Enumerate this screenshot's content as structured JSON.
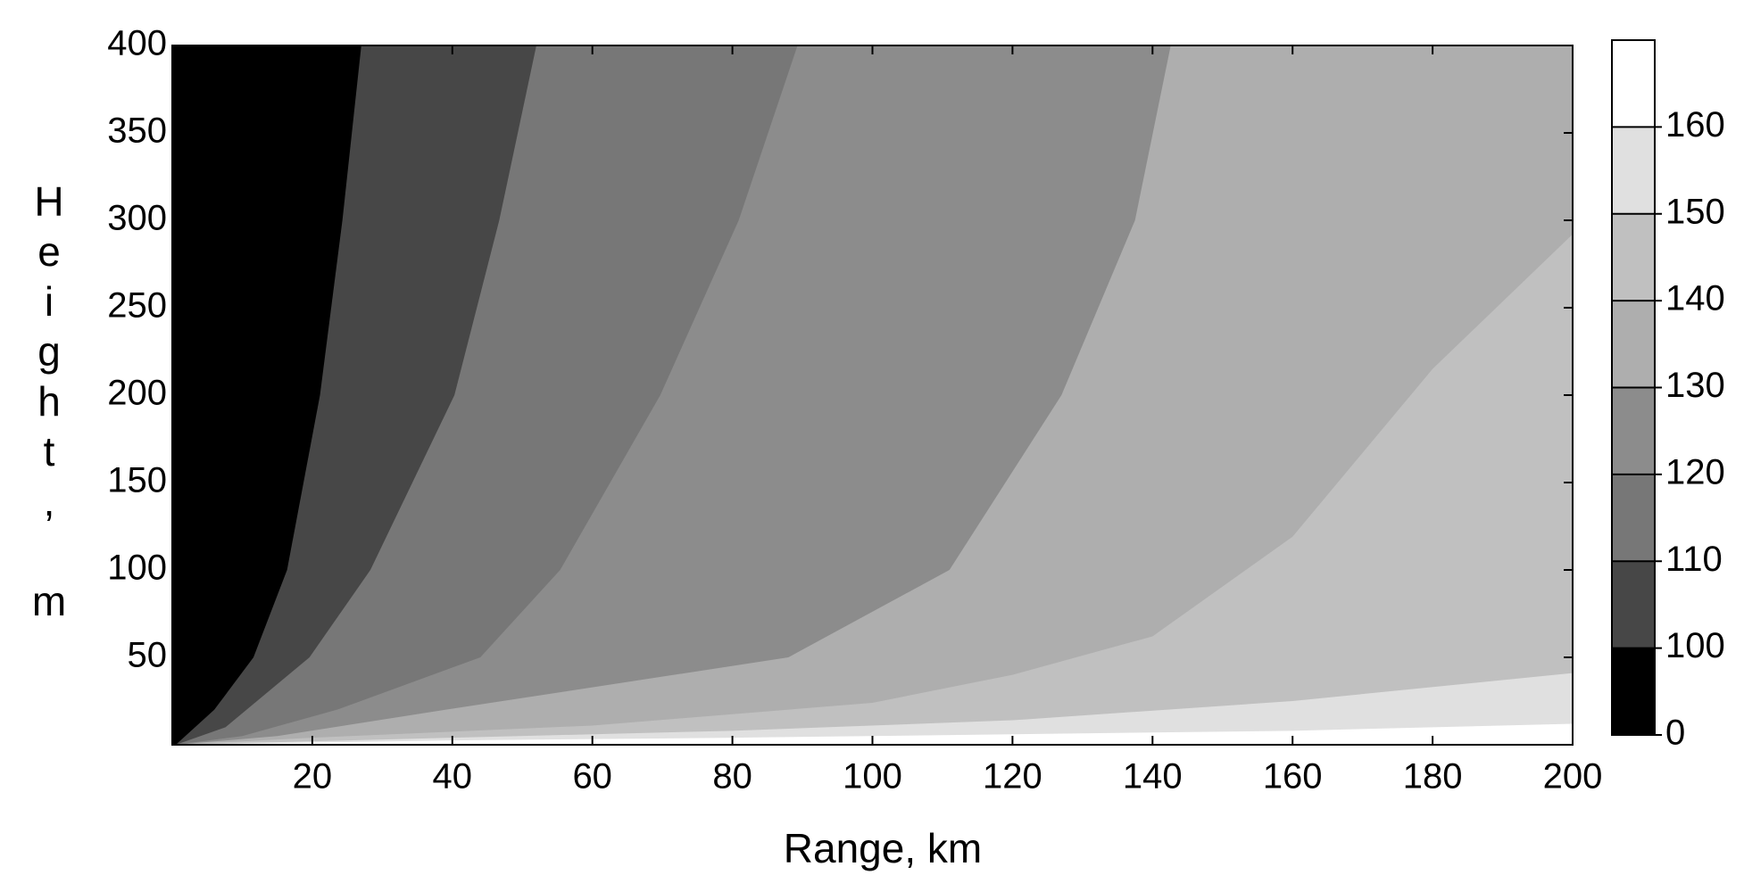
{
  "chart_data": {
    "type": "contour",
    "xlabel": "Range, km",
    "ylabel": "Height, m",
    "xlim": [
      0,
      200
    ],
    "ylim": [
      0,
      400
    ],
    "xticks": [
      20,
      40,
      60,
      80,
      100,
      120,
      140,
      160,
      180,
      200
    ],
    "yticks": [
      50,
      100,
      150,
      200,
      250,
      300,
      350,
      400
    ],
    "colorbar": {
      "levels": [
        0,
        100,
        110,
        120,
        130,
        140,
        150,
        160,
        170
      ],
      "colors": [
        "#000000",
        "#474747",
        "#777777",
        "#8c8c8c",
        "#aeaeae",
        "#c0c0c0",
        "#e0e0e0",
        "#ffffff"
      ],
      "ticks": [
        0,
        100,
        110,
        120,
        130,
        140,
        150,
        160
      ]
    },
    "contours": [
      {
        "x": [
          0.5,
          6,
          11.6,
          16.4,
          21.1,
          24.3,
          27
        ],
        "y": [
          0,
          20,
          50,
          100,
          200,
          300,
          400
        ]
      },
      {
        "x": [
          0.5,
          7.6,
          19.6,
          28.3,
          40.3,
          46.7,
          52
        ],
        "y": [
          0,
          10,
          50,
          100,
          200,
          300,
          400
        ]
      },
      {
        "x": [
          0.5,
          10,
          23.5,
          44,
          55.4,
          69.7,
          80.9,
          89.3
        ],
        "y": [
          0,
          5,
          20,
          50,
          100,
          200,
          300,
          400
        ]
      },
      {
        "x": [
          0.5,
          15,
          39,
          88,
          111,
          127,
          137.5,
          142.6
        ],
        "y": [
          0,
          5,
          20,
          50,
          100,
          200,
          300,
          400
        ]
      },
      {
        "x": [
          0.5,
          20,
          60,
          100,
          120,
          140,
          160,
          180,
          200
        ],
        "y": [
          0,
          4,
          11,
          24,
          40,
          62,
          119,
          215,
          292
        ]
      },
      {
        "x": [
          0.5,
          40,
          80,
          120,
          160,
          200
        ],
        "y": [
          0,
          4,
          8,
          14,
          25,
          41
        ]
      },
      {
        "x": [
          0.5,
          40,
          80,
          120,
          160,
          200
        ],
        "y": [
          0,
          2.5,
          4,
          6,
          8,
          12
        ]
      }
    ]
  }
}
